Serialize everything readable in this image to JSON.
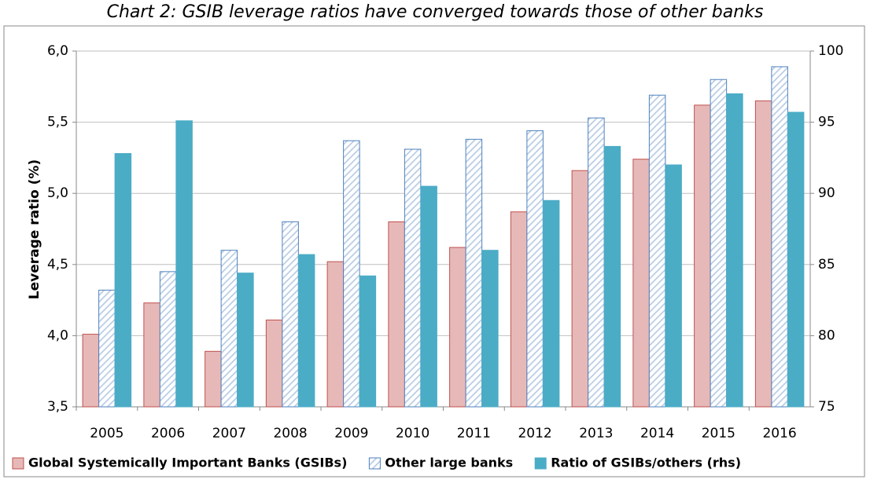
{
  "chart_data": {
    "type": "bar",
    "title": "Chart 2: GSIB leverage ratios have converged towards those of other banks",
    "y_label": "Leverage ratio (%)",
    "categories": [
      "2005",
      "2006",
      "2007",
      "2008",
      "2009",
      "2010",
      "2011",
      "2012",
      "2013",
      "2014",
      "2015",
      "2016"
    ],
    "series": [
      {
        "name": "Global Systemically Important Banks (GSIBs)",
        "color": "#e6b9b8",
        "edge": "#c0504d",
        "values": [
          4.01,
          4.23,
          3.89,
          4.11,
          4.52,
          4.8,
          4.62,
          4.87,
          5.16,
          5.24,
          5.62,
          5.65
        ]
      },
      {
        "name": "Other large banks",
        "color": "#b9cde5",
        "edge": "#4f81bd",
        "pattern": "hatch",
        "values": [
          4.32,
          4.45,
          4.6,
          4.8,
          5.37,
          5.31,
          5.38,
          5.44,
          5.53,
          5.69,
          5.8,
          5.89
        ]
      },
      {
        "name": "Ratio of GSIBs/others (rhs)",
        "color": "#4bacc6",
        "edge": "#4bacc6",
        "axis": "y2",
        "values": [
          92.8,
          95.1,
          84.4,
          85.7,
          84.2,
          90.5,
          86.0,
          89.5,
          93.3,
          92.0,
          97.0,
          95.7
        ]
      }
    ],
    "ylim": [
      3.5,
      6.0
    ],
    "yticks": [
      {
        "value": 3.5,
        "label": "3,5"
      },
      {
        "value": 4.0,
        "label": "4,0"
      },
      {
        "value": 4.5,
        "label": "4,5"
      },
      {
        "value": 5.0,
        "label": "5,0"
      },
      {
        "value": 5.5,
        "label": "5,5"
      },
      {
        "value": 6.0,
        "label": "6,0"
      }
    ],
    "y2lim": [
      75,
      100
    ],
    "y2ticks": [
      75,
      80,
      85,
      90,
      95,
      100
    ],
    "grid": true
  }
}
